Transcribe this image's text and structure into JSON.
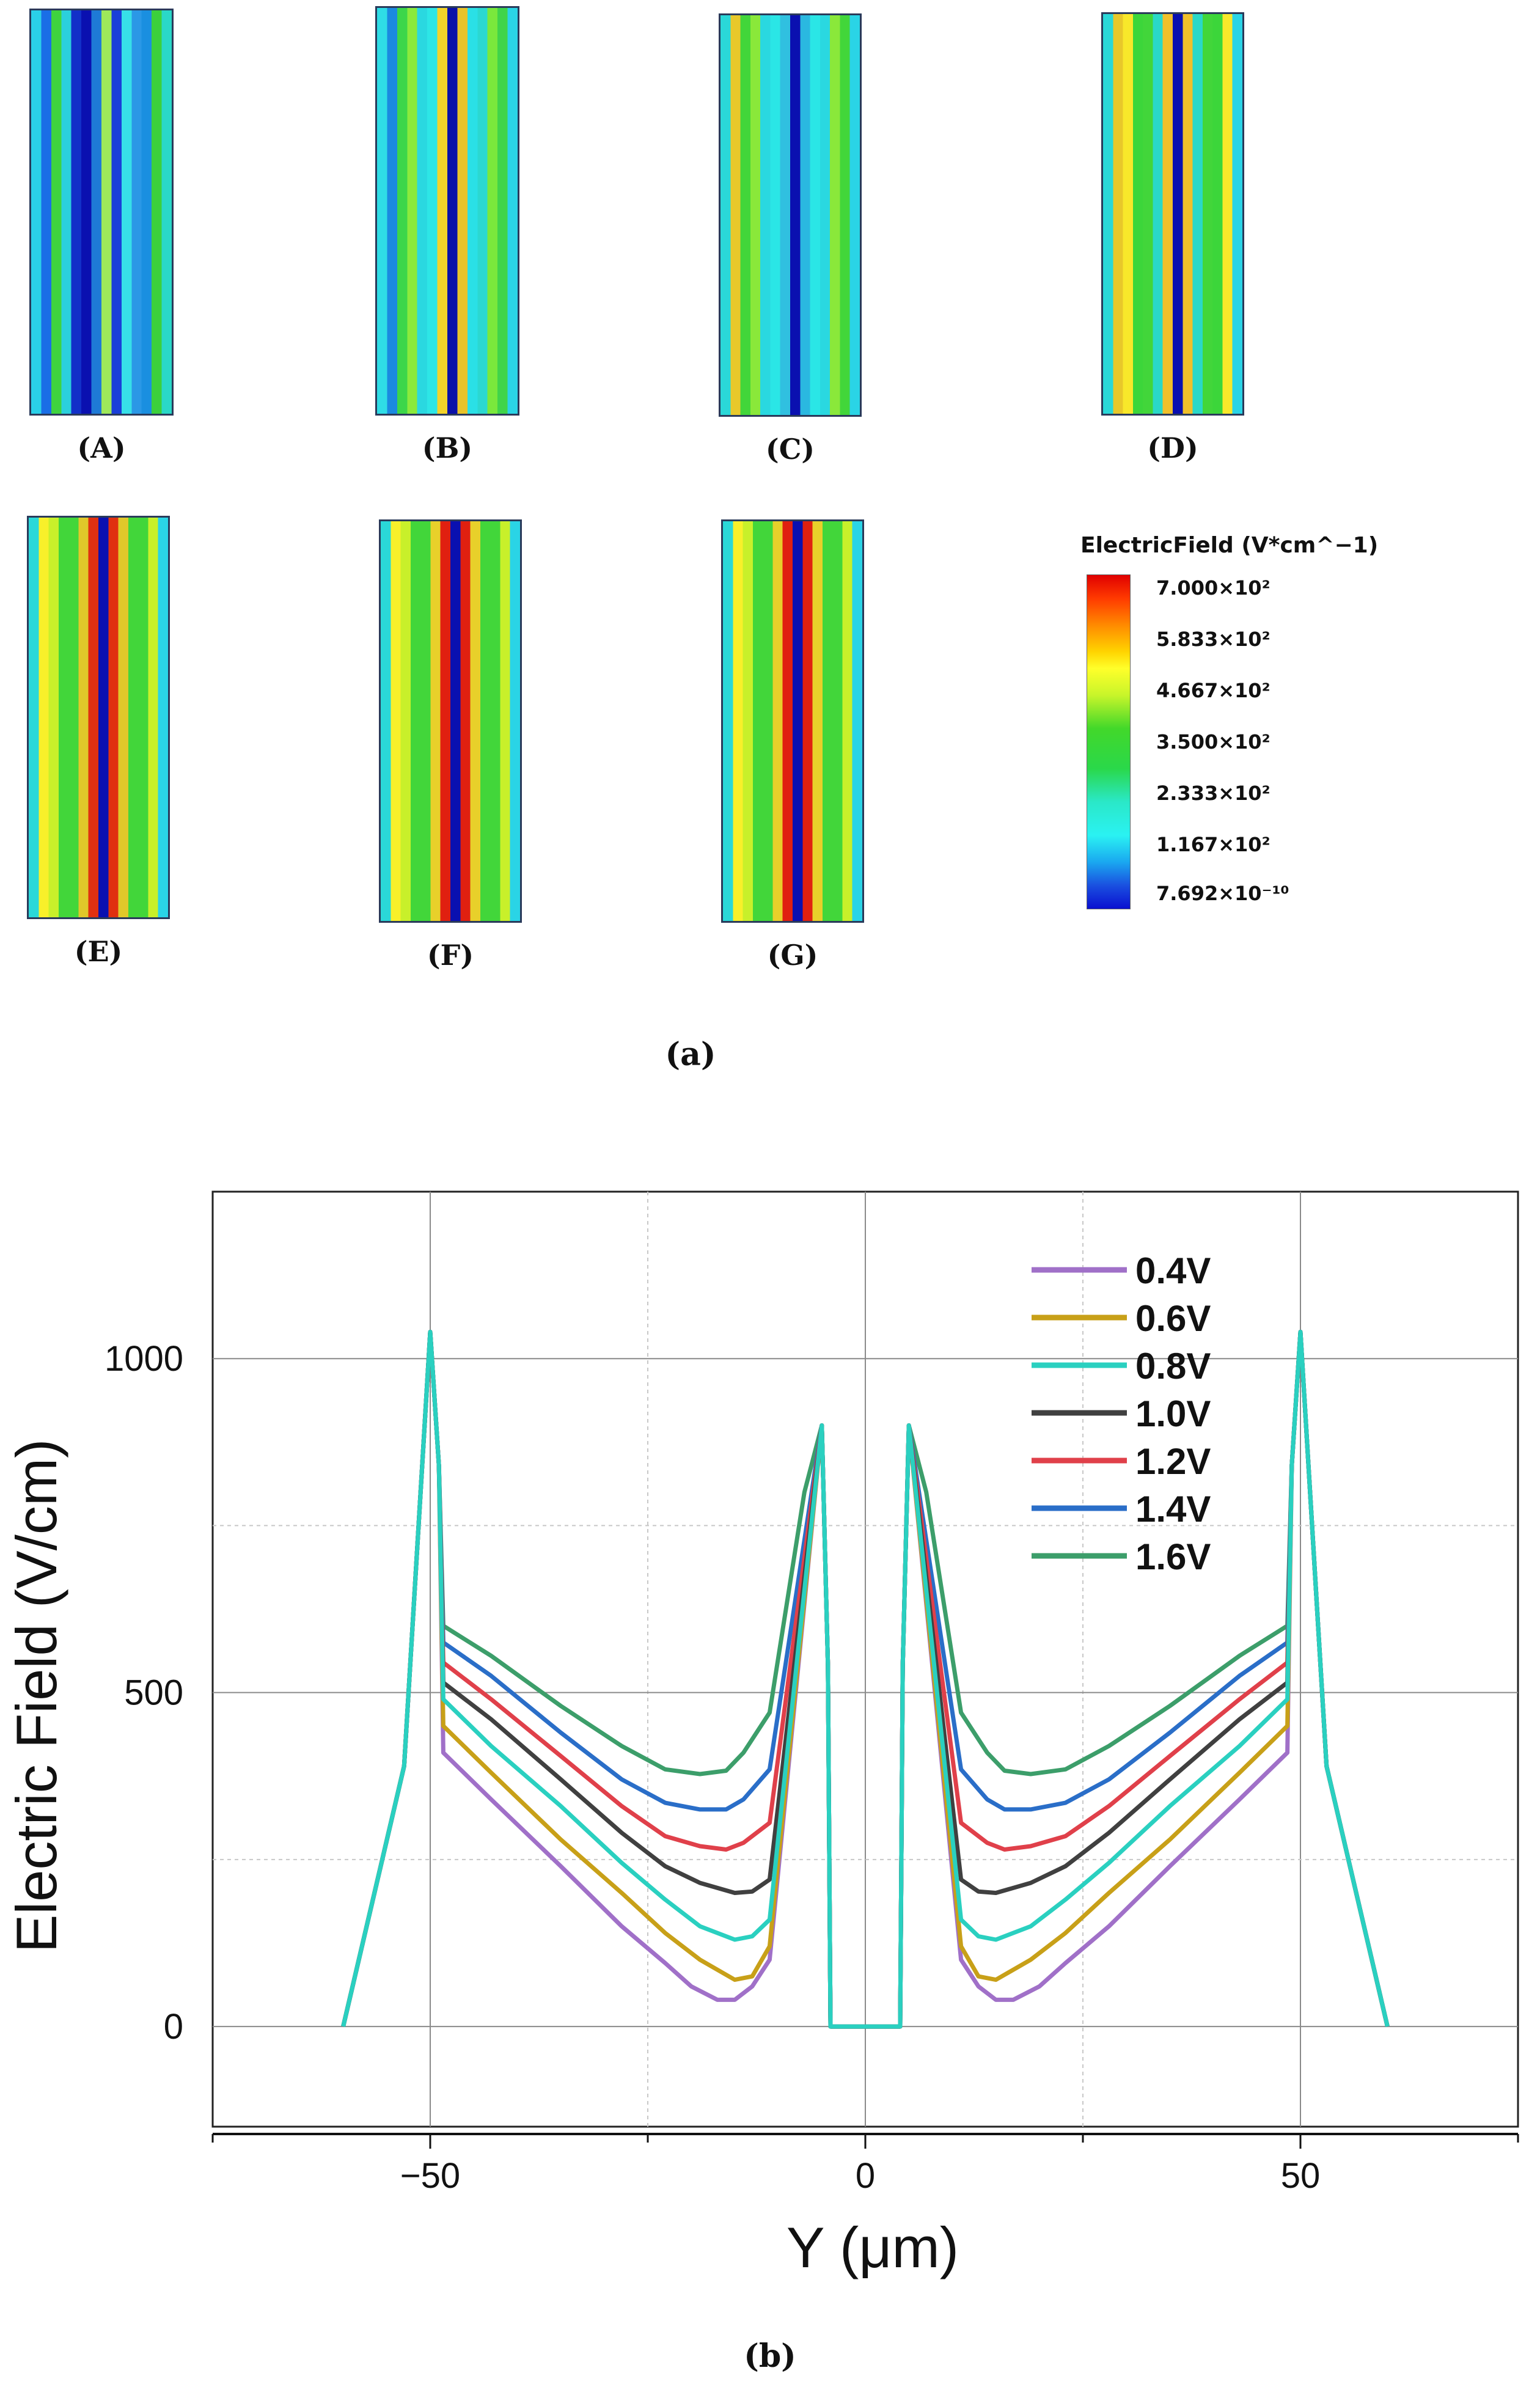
{
  "panel_a": {
    "caption": "(a)",
    "thumbnails": [
      {
        "label": "(A)",
        "stripes": [
          "#2ad0e8",
          "#1a6ee6",
          "#3fd33f",
          "#2bd0dc",
          "#1230c8",
          "#0a10b0",
          "#1e7ad6",
          "#9ee85a",
          "#1a3fd8",
          "#37e0e8",
          "#2b98e6",
          "#1a8fe0",
          "#3cd03c",
          "#2ad8c8"
        ]
      },
      {
        "label": "(B)",
        "stripes": [
          "#2fdde6",
          "#1a8ae0",
          "#3cd64a",
          "#8aea3c",
          "#2ad8e0",
          "#2de6e6",
          "#f3d32a",
          "#0a10a8",
          "#e8c32a",
          "#2ae0e6",
          "#2bd8d0",
          "#7ae83c",
          "#40d44a",
          "#2ad4e6"
        ]
      },
      {
        "label": "(C)",
        "stripes": [
          "#2ad8d8",
          "#e8c82a",
          "#42d63a",
          "#8ae83a",
          "#2ad8e0",
          "#2ae6e6",
          "#30c0e0",
          "#0a10b0",
          "#2ab8e0",
          "#2ae6e6",
          "#2ad8e0",
          "#8ae83a",
          "#42d63a",
          "#2ad4e6"
        ]
      },
      {
        "label": "(D)",
        "stripes": [
          "#2ad8d8",
          "#e8c82a",
          "#f8e82a",
          "#3cd63a",
          "#42d63a",
          "#2ad8c8",
          "#f0c02a",
          "#0a10b0",
          "#f0c02a",
          "#2ad8c8",
          "#42d63a",
          "#3cd63a",
          "#f8e82a",
          "#2ad4e6"
        ]
      },
      {
        "label": "(E)",
        "stripes": [
          "#2ad8d8",
          "#f8f02a",
          "#c8f02a",
          "#42d63a",
          "#42d63a",
          "#e0c82a",
          "#e03010",
          "#0a10b0",
          "#e03010",
          "#e0c82a",
          "#42d63a",
          "#42d63a",
          "#c8f02a",
          "#2ad4e6"
        ]
      },
      {
        "label": "(F)",
        "stripes": [
          "#2ad8d8",
          "#f8f02a",
          "#c8f02a",
          "#42d63a",
          "#42d63a",
          "#e8d02a",
          "#e02010",
          "#0a10b0",
          "#e02010",
          "#e8d02a",
          "#42d63a",
          "#42d63a",
          "#c8f02a",
          "#2ad4e6"
        ]
      },
      {
        "label": "(G)",
        "stripes": [
          "#2ad8d8",
          "#f8f02a",
          "#c8f02a",
          "#42d63a",
          "#42d63a",
          "#e8d02a",
          "#e02010",
          "#0a10b0",
          "#e02010",
          "#e8d02a",
          "#42d63a",
          "#42d63a",
          "#c8f02a",
          "#2ad4e6"
        ]
      }
    ],
    "colorbar": {
      "title": "ElectricField (V*cm^−1)",
      "ticks": [
        "7.000×10²",
        "5.833×10²",
        "4.667×10²",
        "3.500×10²",
        "2.333×10²",
        "1.167×10²",
        "7.692×10⁻¹⁰"
      ]
    }
  },
  "panel_b": {
    "caption": "(b)"
  },
  "chart_data": {
    "type": "line",
    "title": "",
    "xlabel": "Y (μm)",
    "ylabel": "Electric Field (V/cm)",
    "xlim": [
      -75,
      75
    ],
    "ylim": [
      -150,
      1250
    ],
    "xticks": [
      -50,
      0,
      50
    ],
    "xtick_labels": [
      "−50",
      "0",
      "50"
    ],
    "yticks": [
      0,
      500,
      1000
    ],
    "ytick_labels": [
      "0",
      "500",
      "1000"
    ],
    "grid": true,
    "legend_position": "top-right",
    "series": [
      {
        "name": "0.4V",
        "color": "#a070c8",
        "x": [
          -60,
          -53,
          -50,
          -49,
          -48.5,
          -43,
          -35,
          -28,
          -23,
          -20,
          -17,
          -15,
          -13,
          -11,
          -5,
          -4.3,
          -4,
          4,
          4.3,
          5,
          11,
          13,
          15,
          17,
          20,
          23,
          28,
          35,
          43,
          48.5,
          49,
          50,
          53,
          60
        ],
        "y": [
          0,
          390,
          1040,
          840,
          410,
          340,
          240,
          150,
          95,
          60,
          40,
          40,
          60,
          100,
          900,
          540,
          0,
          0,
          540,
          900,
          100,
          60,
          40,
          40,
          60,
          95,
          150,
          240,
          340,
          410,
          840,
          1040,
          390,
          0
        ]
      },
      {
        "name": "0.6V",
        "color": "#c8a018",
        "x": [
          -60,
          -53,
          -50,
          -49,
          -48.5,
          -43,
          -35,
          -28,
          -23,
          -19,
          -15,
          -13,
          -11,
          -5,
          -4.3,
          -4,
          4,
          4.3,
          5,
          11,
          13,
          15,
          19,
          23,
          28,
          35,
          43,
          48.5,
          49,
          50,
          53,
          60
        ],
        "y": [
          0,
          390,
          1040,
          840,
          450,
          380,
          280,
          200,
          140,
          100,
          70,
          75,
          120,
          900,
          540,
          0,
          0,
          540,
          900,
          120,
          75,
          70,
          100,
          140,
          200,
          280,
          380,
          450,
          840,
          1040,
          390,
          0
        ]
      },
      {
        "name": "1.6V",
        "color": "#3c9e6a",
        "x": [
          -60,
          -53,
          -50,
          -49,
          -48.5,
          -43,
          -35,
          -28,
          -23,
          -19,
          -16,
          -14,
          -11,
          -7,
          -5,
          -4.3,
          -4,
          4,
          4.3,
          5,
          7,
          11,
          14,
          16,
          19,
          23,
          28,
          35,
          43,
          48.5,
          49,
          50,
          53,
          60
        ],
        "y": [
          0,
          390,
          1040,
          840,
          600,
          555,
          480,
          420,
          385,
          378,
          383,
          410,
          470,
          800,
          900,
          540,
          0,
          0,
          540,
          900,
          800,
          470,
          410,
          383,
          378,
          385,
          420,
          480,
          555,
          600,
          840,
          1040,
          390,
          0
        ]
      },
      {
        "name": "1.4V",
        "color": "#2a6ec8",
        "x": [
          -60,
          -53,
          -50,
          -49,
          -48.5,
          -43,
          -35,
          -28,
          -23,
          -19,
          -16,
          -14,
          -11,
          -5,
          -4.3,
          -4,
          4,
          4.3,
          5,
          11,
          14,
          16,
          19,
          23,
          28,
          35,
          43,
          48.5,
          49,
          50,
          53,
          60
        ],
        "y": [
          0,
          390,
          1040,
          840,
          575,
          525,
          440,
          370,
          335,
          325,
          325,
          340,
          385,
          900,
          540,
          0,
          0,
          540,
          900,
          385,
          340,
          325,
          325,
          335,
          370,
          440,
          525,
          575,
          840,
          1040,
          390,
          0
        ]
      },
      {
        "name": "1.2V",
        "color": "#e0404a",
        "x": [
          -60,
          -53,
          -50,
          -49,
          -48.5,
          -43,
          -35,
          -28,
          -23,
          -19,
          -16,
          -14,
          -11,
          -5,
          -4.3,
          -4,
          4,
          4.3,
          5,
          11,
          14,
          16,
          19,
          23,
          28,
          35,
          43,
          48.5,
          49,
          50,
          53,
          60
        ],
        "y": [
          0,
          390,
          1040,
          840,
          545,
          490,
          405,
          330,
          285,
          270,
          265,
          275,
          305,
          900,
          540,
          0,
          0,
          540,
          900,
          305,
          275,
          265,
          270,
          285,
          330,
          405,
          490,
          545,
          840,
          1040,
          390,
          0
        ]
      },
      {
        "name": "1.0V",
        "color": "#404040",
        "x": [
          -60,
          -53,
          -50,
          -49,
          -48.5,
          -43,
          -35,
          -28,
          -23,
          -19,
          -15,
          -13,
          -11,
          -5,
          -4.3,
          -4,
          4,
          4.3,
          5,
          11,
          13,
          15,
          19,
          23,
          28,
          35,
          43,
          48.5,
          49,
          50,
          53,
          60
        ],
        "y": [
          0,
          390,
          1040,
          840,
          515,
          460,
          370,
          290,
          240,
          215,
          200,
          202,
          220,
          900,
          540,
          0,
          0,
          540,
          900,
          220,
          202,
          200,
          215,
          240,
          290,
          370,
          460,
          515,
          840,
          1040,
          390,
          0
        ]
      },
      {
        "name": "0.8V",
        "color": "#2ad0c0",
        "x": [
          -60,
          -53,
          -50,
          -49,
          -48.5,
          -43,
          -35,
          -28,
          -23,
          -19,
          -15,
          -13,
          -11,
          -5,
          -4.3,
          -4,
          4,
          4.3,
          5,
          11,
          13,
          15,
          19,
          23,
          28,
          35,
          43,
          48.5,
          49,
          50,
          53,
          60
        ],
        "y": [
          0,
          390,
          1040,
          840,
          490,
          420,
          330,
          245,
          190,
          150,
          130,
          135,
          160,
          900,
          540,
          0,
          0,
          540,
          900,
          160,
          135,
          130,
          150,
          190,
          245,
          330,
          420,
          490,
          840,
          1040,
          390,
          0
        ]
      }
    ],
    "legend_order": [
      "0.4V",
      "0.6V",
      "0.8V",
      "1.0V",
      "1.2V",
      "1.4V",
      "1.6V"
    ]
  }
}
